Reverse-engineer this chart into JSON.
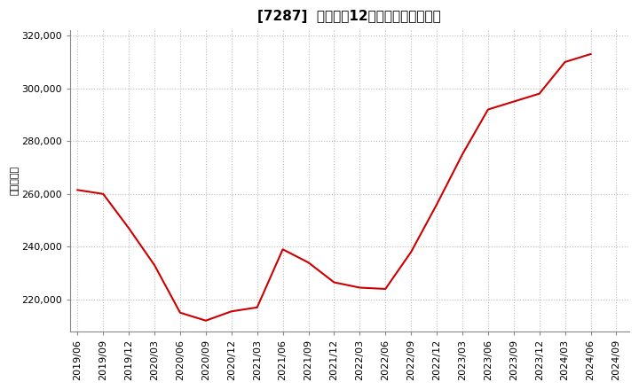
{
  "title": "[7287]  売上高の12か月移動合計の推移",
  "ylabel": "（百万円）",
  "line_color": "#cc0000",
  "bg_color": "#ffffff",
  "plot_bg_color": "#ffffff",
  "grid_color": "#bbbbbb",
  "ylim": [
    208000,
    322000
  ],
  "yticks": [
    220000,
    240000,
    260000,
    280000,
    300000,
    320000
  ],
  "dates": [
    "2019/06",
    "2019/09",
    "2019/12",
    "2020/03",
    "2020/06",
    "2020/09",
    "2020/12",
    "2021/03",
    "2021/06",
    "2021/09",
    "2021/12",
    "2022/03",
    "2022/06",
    "2022/09",
    "2022/12",
    "2023/03",
    "2023/06",
    "2023/09",
    "2023/12",
    "2024/03",
    "2024/06"
  ],
  "values": [
    261500,
    260000,
    247000,
    233000,
    215000,
    212000,
    215500,
    217000,
    239000,
    234000,
    226500,
    224500,
    224000,
    238000,
    256000,
    275000,
    292000,
    295000,
    298000,
    310000,
    313000
  ],
  "xticks": [
    "2019/06",
    "2019/09",
    "2019/12",
    "2020/03",
    "2020/06",
    "2020/09",
    "2020/12",
    "2021/03",
    "2021/06",
    "2021/09",
    "2021/12",
    "2022/03",
    "2022/06",
    "2022/09",
    "2022/12",
    "2023/03",
    "2023/06",
    "2023/09",
    "2023/12",
    "2024/03",
    "2024/06",
    "2024/09"
  ],
  "title_fontsize": 11,
  "tick_fontsize": 8,
  "ylabel_fontsize": 8,
  "linewidth": 1.5
}
